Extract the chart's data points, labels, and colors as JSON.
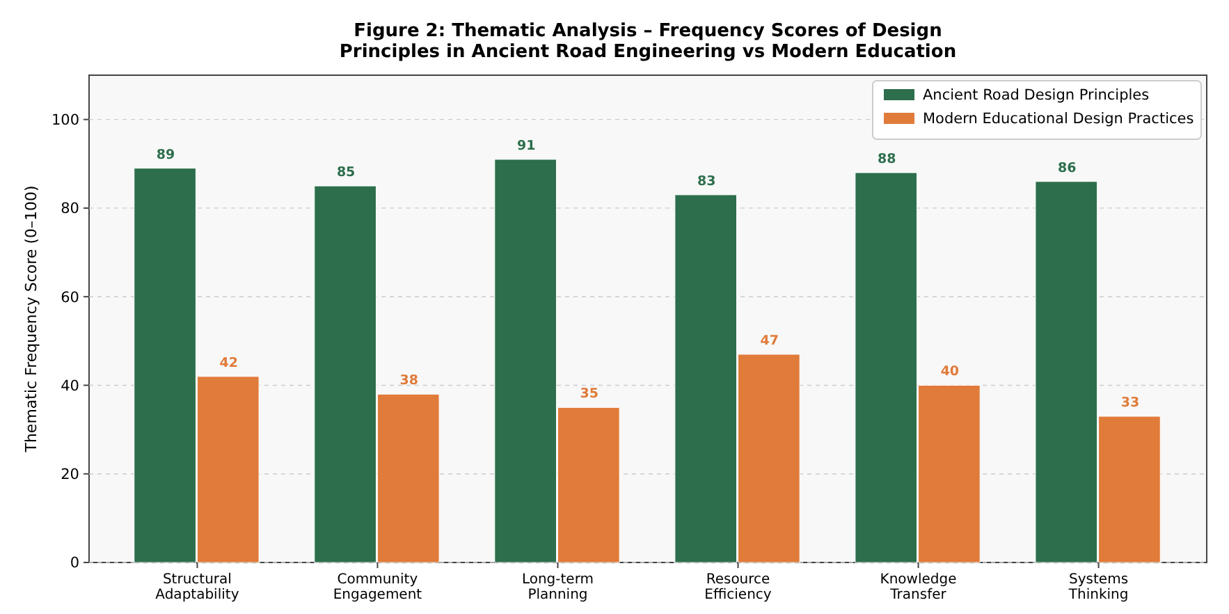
{
  "chart_data": {
    "type": "bar",
    "title": "Figure 2: Thematic Analysis – Frequency Scores of Design\nPrinciples in Ancient Road Engineering vs Modern Education",
    "ylabel": "Thematic Frequency Score (0–100)",
    "categories": [
      "Structural\nAdaptability",
      "Community\nEngagement",
      "Long-term\nPlanning",
      "Resource\nEfficiency",
      "Knowledge\nTransfer",
      "Systems\nThinking"
    ],
    "series": [
      {
        "name": "Ancient Road Design Principles",
        "color": "#2d6e4c",
        "values": [
          89,
          85,
          91,
          83,
          88,
          86
        ]
      },
      {
        "name": "Modern Educational Design Practices",
        "color": "#e07b3a",
        "values": [
          42,
          38,
          35,
          47,
          40,
          33
        ]
      }
    ],
    "ylim": [
      0,
      110
    ],
    "yticks": [
      0,
      20,
      40,
      60,
      80,
      100
    ],
    "grid": "y",
    "legend": "top right",
    "data_labels": true
  }
}
